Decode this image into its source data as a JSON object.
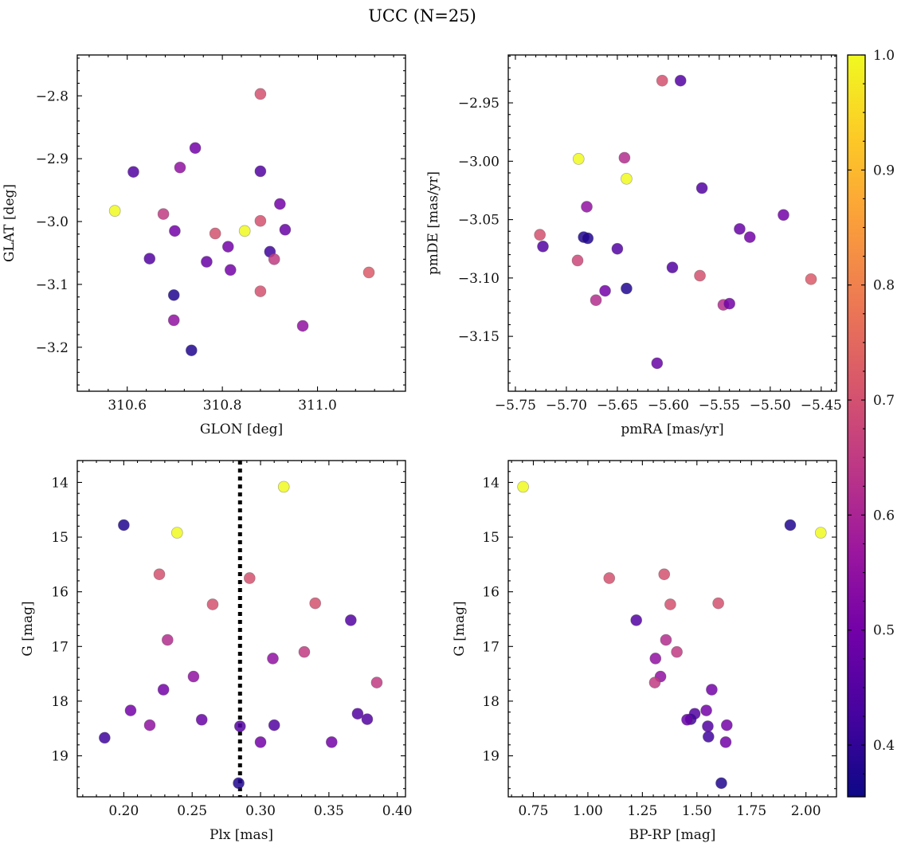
{
  "figure": {
    "title": "UCC (N=25)"
  },
  "colorbar": {
    "range": [
      0.355,
      1.0
    ],
    "ticks": [
      0.4,
      0.5,
      0.6,
      0.7,
      0.8,
      0.9,
      1.0
    ],
    "tick_labels": [
      "0.4",
      "0.5",
      "0.6",
      "0.7",
      "0.8",
      "0.9",
      "1.0"
    ],
    "colormap": "plasma",
    "colormap_stops": [
      "#0d0887",
      "#46039f",
      "#7201a8",
      "#9c179e",
      "#bd3786",
      "#d8576b",
      "#ed7953",
      "#fb9f3a",
      "#fdca26",
      "#f0f921"
    ]
  },
  "chart_data": [
    {
      "type": "scatter",
      "xlabel": "GLON [deg]",
      "ylabel": "GLAT [deg]",
      "xlim": [
        310.495,
        311.185
      ],
      "ylim": [
        -3.27,
        -2.735
      ],
      "x_ticks": [
        310.6,
        310.8,
        311.0
      ],
      "x_tick_labels": [
        "310.6",
        "310.8",
        "311.0"
      ],
      "y_ticks": [
        -2.8,
        -2.9,
        -3.0,
        -3.1,
        -3.2
      ],
      "y_tick_labels": [
        "−2.8",
        "−2.9",
        "−3.0",
        "−3.1",
        "−3.2"
      ],
      "x": [
        310.88,
        310.743,
        310.613,
        310.711,
        310.88,
        310.574,
        310.921,
        310.676,
        310.88,
        310.7,
        310.932,
        310.785,
        310.847,
        310.812,
        310.9,
        310.647,
        310.909,
        310.767,
        310.817,
        311.108,
        310.698,
        310.88,
        310.698,
        310.969,
        310.735
      ],
      "y": [
        -2.797,
        -2.883,
        -2.921,
        -2.914,
        -2.92,
        -2.983,
        -2.972,
        -2.988,
        -2.999,
        -3.015,
        -3.013,
        -3.019,
        -3.015,
        -3.04,
        -3.048,
        -3.059,
        -3.06,
        -3.064,
        -3.077,
        -3.081,
        -3.117,
        -3.111,
        -3.157,
        -3.166,
        -3.205
      ],
      "c": [
        0.7,
        0.5,
        0.45,
        0.55,
        0.45,
        1.0,
        0.5,
        0.65,
        0.7,
        0.5,
        0.48,
        0.7,
        1.0,
        0.5,
        0.42,
        0.45,
        0.65,
        0.48,
        0.5,
        0.72,
        0.38,
        0.7,
        0.55,
        0.55,
        0.38
      ]
    },
    {
      "type": "scatter",
      "xlabel": "pmRA [mas/yr]",
      "ylabel": "pmDE [mas/yr]",
      "xlim": [
        -5.757,
        -5.435
      ],
      "ylim": [
        -3.197,
        -2.909
      ],
      "x_ticks": [
        -5.75,
        -5.7,
        -5.65,
        -5.6,
        -5.55,
        -5.5,
        -5.45
      ],
      "x_tick_labels": [
        "−5.75",
        "−5.70",
        "−5.65",
        "−5.60",
        "−5.55",
        "−5.50",
        "−5.45"
      ],
      "y_ticks": [
        -2.95,
        -3.0,
        -3.05,
        -3.1,
        -3.15
      ],
      "y_tick_labels": [
        "−2.95",
        "−3.00",
        "−3.05",
        "−3.10",
        "−3.15"
      ],
      "x": [
        -5.606,
        -5.588,
        -5.688,
        -5.643,
        -5.641,
        -5.567,
        -5.68,
        -5.487,
        -5.53,
        -5.726,
        -5.52,
        -5.683,
        -5.679,
        -5.723,
        -5.65,
        -5.689,
        -5.596,
        -5.569,
        -5.46,
        -5.662,
        -5.641,
        -5.671,
        -5.546,
        -5.54,
        -5.611
      ],
      "y": [
        -2.931,
        -2.931,
        -2.998,
        -2.997,
        -3.015,
        -3.023,
        -3.039,
        -3.046,
        -3.058,
        -3.063,
        -3.065,
        -3.065,
        -3.066,
        -3.073,
        -3.075,
        -3.085,
        -3.091,
        -3.098,
        -3.101,
        -3.111,
        -3.109,
        -3.119,
        -3.123,
        -3.122,
        -3.173
      ],
      "c": [
        0.7,
        0.45,
        1.0,
        0.62,
        1.0,
        0.45,
        0.55,
        0.5,
        0.48,
        0.7,
        0.5,
        0.38,
        0.38,
        0.45,
        0.45,
        0.68,
        0.45,
        0.7,
        0.72,
        0.5,
        0.38,
        0.62,
        0.62,
        0.5,
        0.48
      ]
    },
    {
      "type": "scatter",
      "xlabel": "Plx [mas]",
      "ylabel": "G [mag]",
      "xlim": [
        0.166,
        0.406
      ],
      "ylim": [
        19.75,
        13.6
      ],
      "y_inverted": true,
      "x_ticks": [
        0.2,
        0.25,
        0.3,
        0.35,
        0.4
      ],
      "x_tick_labels": [
        "0.20",
        "0.25",
        "0.30",
        "0.35",
        "0.40"
      ],
      "y_ticks": [
        14,
        15,
        16,
        17,
        18,
        19
      ],
      "y_tick_labels": [
        "14",
        "15",
        "16",
        "17",
        "18",
        "19"
      ],
      "vline": 0.285,
      "x": [
        0.317,
        0.2,
        0.239,
        0.226,
        0.292,
        0.265,
        0.34,
        0.366,
        0.232,
        0.309,
        0.332,
        0.251,
        0.385,
        0.229,
        0.205,
        0.371,
        0.219,
        0.257,
        0.378,
        0.285,
        0.31,
        0.186,
        0.3,
        0.352,
        0.284
      ],
      "y": [
        14.08,
        14.78,
        14.92,
        15.68,
        15.75,
        16.23,
        16.21,
        16.52,
        16.88,
        17.22,
        17.1,
        17.55,
        17.66,
        17.79,
        18.17,
        18.23,
        18.44,
        18.34,
        18.33,
        18.46,
        18.44,
        18.67,
        18.75,
        18.75,
        19.5
      ],
      "c": [
        1.0,
        0.38,
        1.0,
        0.7,
        0.7,
        0.7,
        0.7,
        0.45,
        0.62,
        0.55,
        0.65,
        0.55,
        0.65,
        0.5,
        0.5,
        0.45,
        0.55,
        0.48,
        0.45,
        0.45,
        0.45,
        0.42,
        0.5,
        0.5,
        0.38
      ]
    },
    {
      "type": "scatter",
      "xlabel": "BP-RP [mag]",
      "ylabel": "G [mag]",
      "xlim": [
        0.635,
        2.14
      ],
      "ylim": [
        19.75,
        13.6
      ],
      "y_inverted": true,
      "x_ticks": [
        0.75,
        1.0,
        1.25,
        1.5,
        1.75,
        2.0
      ],
      "x_tick_labels": [
        "0.75",
        "1.00",
        "1.25",
        "1.50",
        "1.75",
        "2.00"
      ],
      "y_ticks": [
        14,
        15,
        16,
        17,
        18,
        19
      ],
      "y_tick_labels": [
        "14",
        "15",
        "16",
        "17",
        "18",
        "19"
      ],
      "x": [
        0.703,
        1.928,
        2.068,
        1.35,
        1.098,
        1.378,
        1.598,
        1.222,
        1.358,
        1.31,
        1.408,
        1.333,
        1.307,
        1.568,
        1.543,
        1.49,
        1.55,
        1.472,
        1.455,
        1.637,
        1.553,
        1.632,
        1.612
      ],
      "y": [
        14.08,
        14.78,
        14.92,
        15.68,
        15.75,
        16.23,
        16.21,
        16.52,
        16.88,
        17.22,
        17.1,
        17.55,
        17.66,
        17.79,
        18.17,
        18.23,
        18.46,
        18.33,
        18.34,
        18.44,
        18.65,
        18.75,
        19.5
      ],
      "c": [
        1.0,
        0.38,
        1.0,
        0.7,
        0.7,
        0.7,
        0.7,
        0.45,
        0.62,
        0.55,
        0.65,
        0.55,
        0.65,
        0.5,
        0.5,
        0.45,
        0.45,
        0.42,
        0.48,
        0.5,
        0.42,
        0.5,
        0.38
      ]
    }
  ]
}
